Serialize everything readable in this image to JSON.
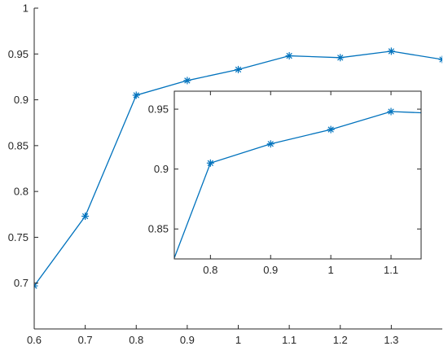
{
  "chart_data": [
    {
      "type": "line",
      "title": "",
      "xlabel": "",
      "ylabel": "",
      "xlim": [
        0.6,
        1.4
      ],
      "ylim": [
        0.65,
        1.0
      ],
      "xticks": [
        0.6,
        0.7,
        0.8,
        0.9,
        1.0,
        1.1,
        1.2,
        1.3
      ],
      "xtick_labels": [
        "0.6",
        "0.7",
        "0.8",
        "0.9",
        "1",
        "1.1",
        "1.2",
        "1.3"
      ],
      "yticks": [
        0.7,
        0.75,
        0.8,
        0.85,
        0.9,
        0.95,
        1.0
      ],
      "ytick_labels": [
        "0.7",
        "0.75",
        "0.8",
        "0.85",
        "0.9",
        "0.95",
        "1"
      ],
      "grid": false,
      "box": false,
      "series": [
        {
          "color": "#0072bd",
          "marker": "asterisk",
          "x": [
            0.6,
            0.7,
            0.8,
            0.9,
            1.0,
            1.1,
            1.2,
            1.3,
            1.4
          ],
          "y": [
            0.697,
            0.773,
            0.905,
            0.921,
            0.933,
            0.948,
            0.946,
            0.953,
            0.944
          ]
        }
      ]
    },
    {
      "type": "line",
      "inset": true,
      "title": "",
      "xlabel": "",
      "ylabel": "",
      "xlim": [
        0.74,
        1.15
      ],
      "ylim": [
        0.825,
        0.965
      ],
      "xticks": [
        0.8,
        0.9,
        1.0,
        1.1
      ],
      "xtick_labels": [
        "0.8",
        "0.9",
        "1",
        "1.1"
      ],
      "yticks": [
        0.85,
        0.9,
        0.95
      ],
      "ytick_labels": [
        "0.85",
        "0.9",
        "0.95"
      ],
      "grid": false,
      "box": true,
      "series": [
        {
          "color": "#0072bd",
          "marker": "asterisk",
          "x": [
            0.7,
            0.8,
            0.9,
            1.0,
            1.1,
            1.2
          ],
          "y": [
            0.773,
            0.905,
            0.921,
            0.933,
            0.948,
            0.946
          ]
        }
      ]
    }
  ]
}
